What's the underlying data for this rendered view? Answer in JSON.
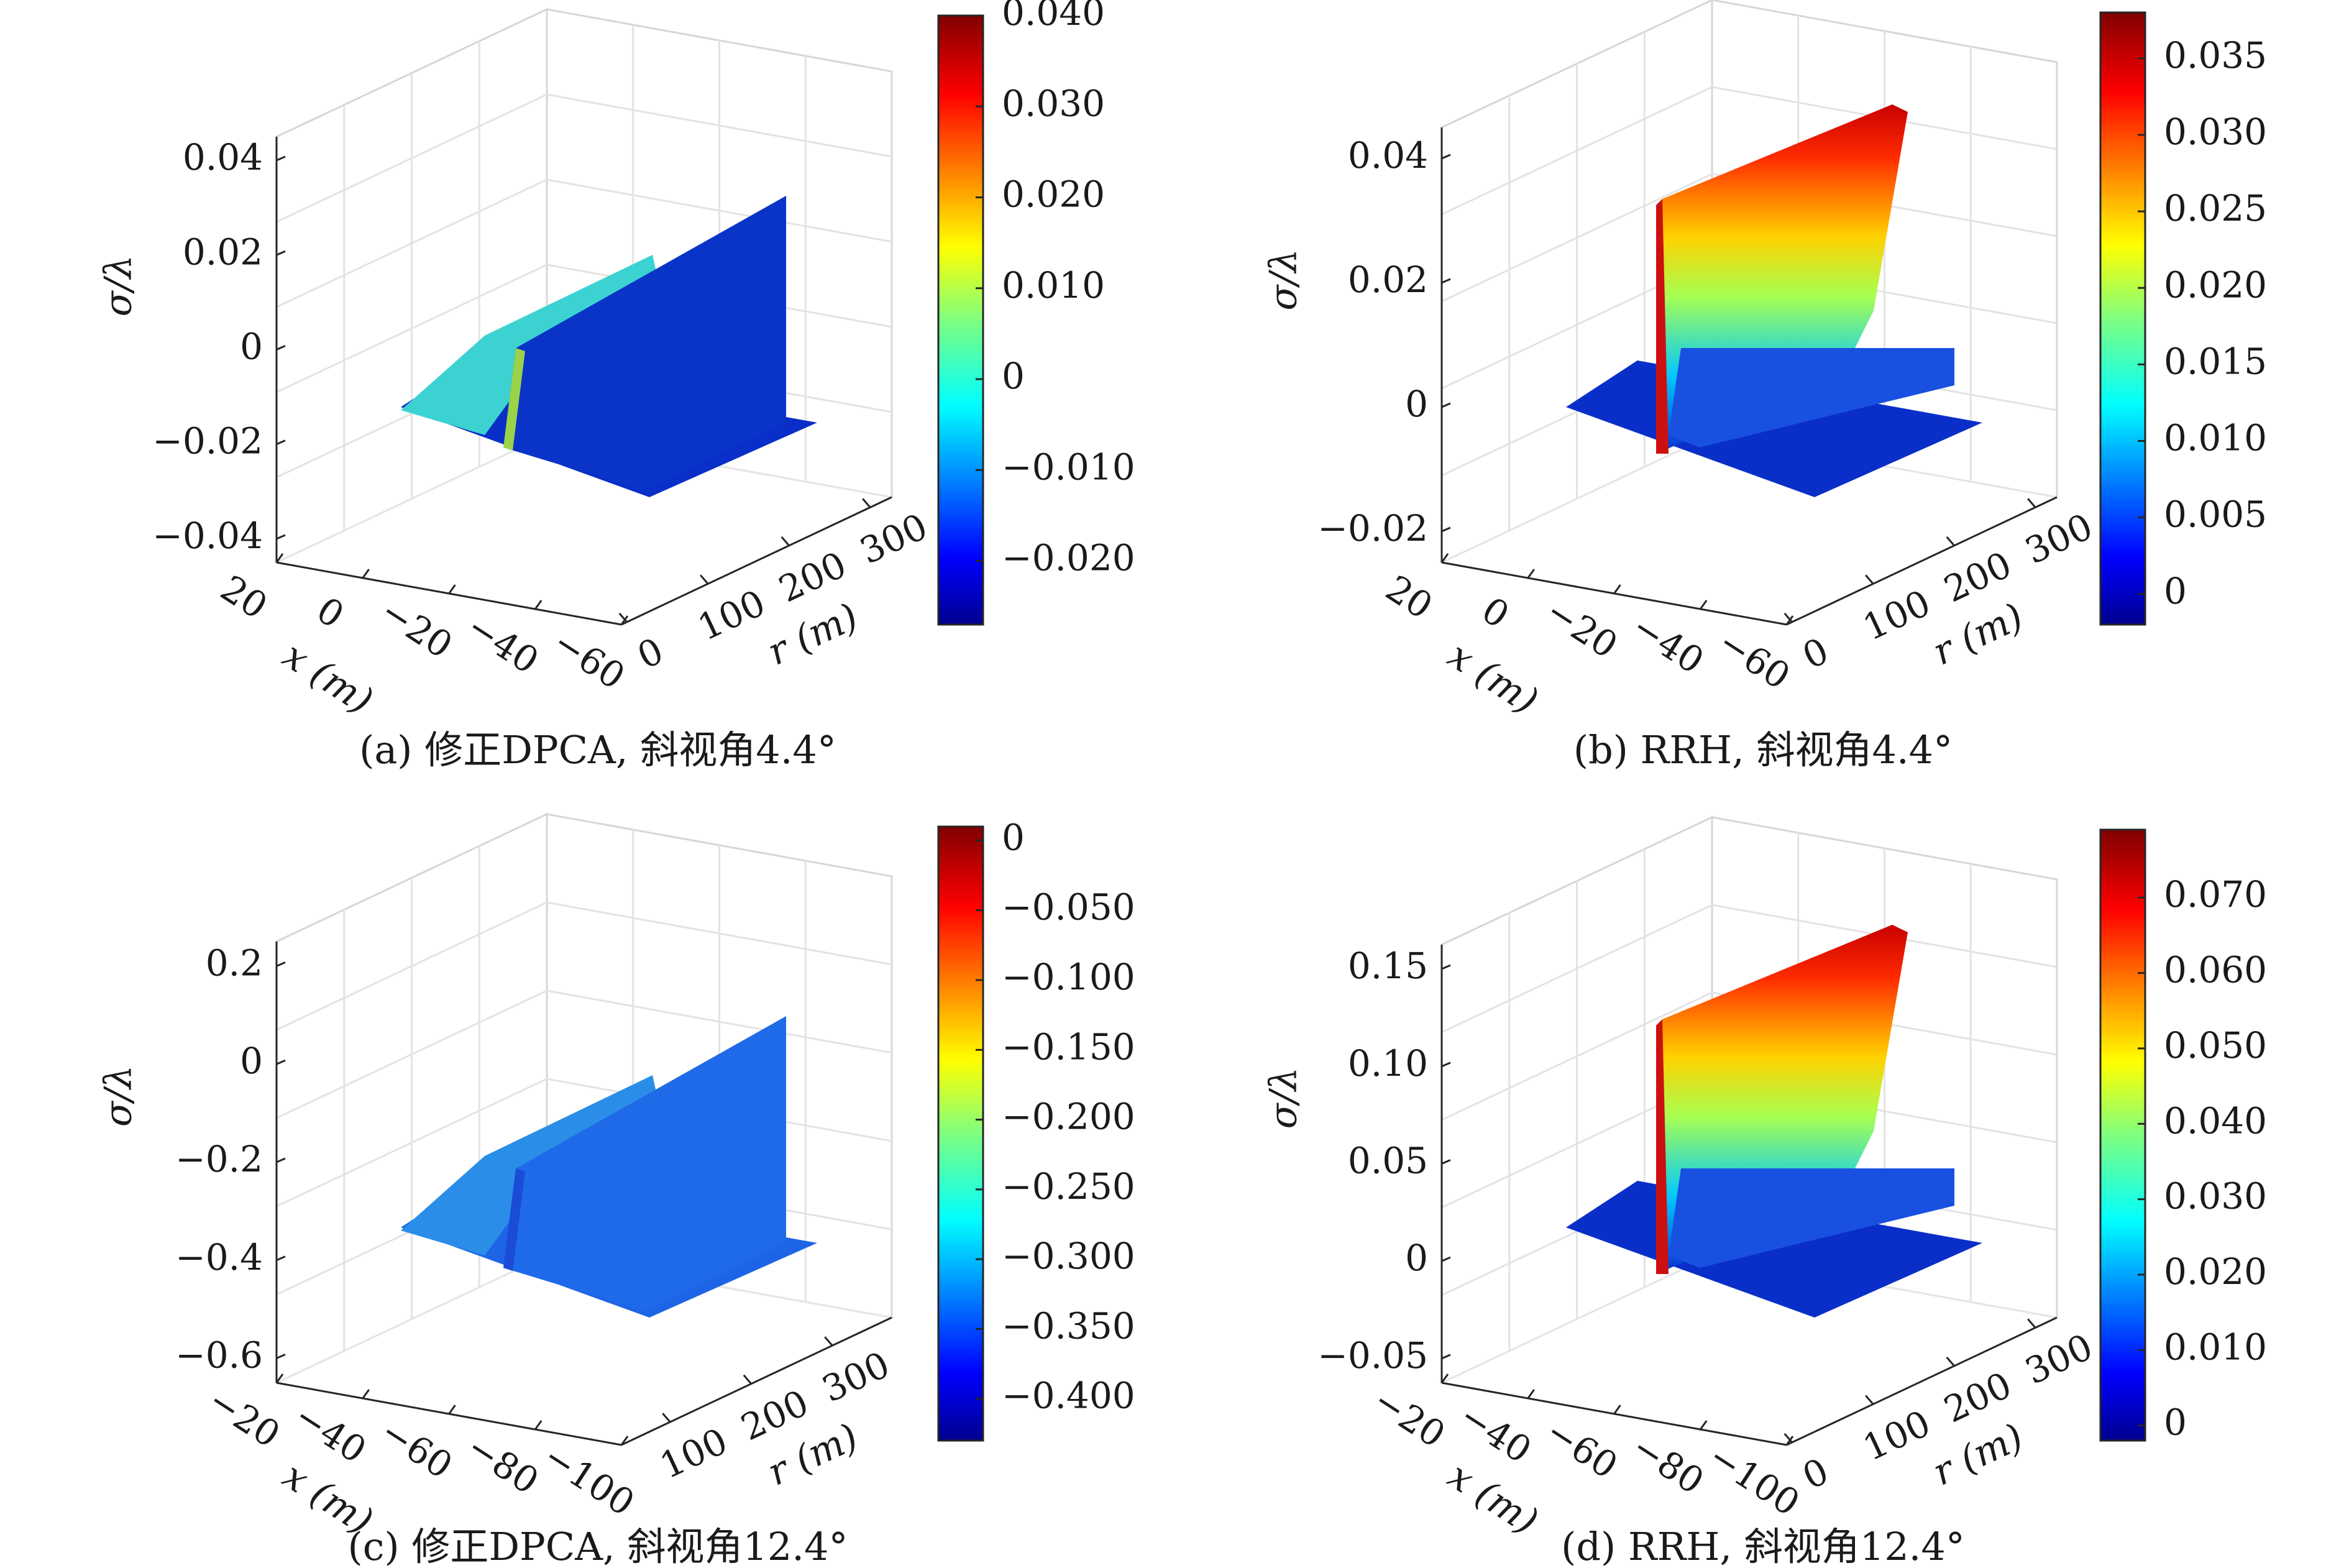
{
  "figure": {
    "panels": [
      {
        "id": "a",
        "caption": "(a) 修正DPCA, 斜视角4.4°"
      },
      {
        "id": "b",
        "caption": "(b) RRH, 斜视角4.4°"
      },
      {
        "id": "c",
        "caption": "(c) 修正DPCA, 斜视角12.4°"
      },
      {
        "id": "d",
        "caption": "(d) RRH, 斜视角12.4°"
      }
    ]
  },
  "chart_data": [
    {
      "id": "a",
      "type": "surface",
      "title": "",
      "xlabel": "r (m)",
      "ylabel": "x (m)",
      "zlabel": "σ/λ",
      "r_ticks": [
        "0",
        "100",
        "200",
        "300"
      ],
      "x_ticks": [
        "20",
        "0",
        "−20",
        "−40",
        "−60"
      ],
      "z_ticks": [
        "0.04",
        "0.02",
        "0",
        "−0.02",
        "−0.04"
      ],
      "zlim": [
        -0.05,
        0.05
      ],
      "colorbar": {
        "colormap": "jet",
        "range": [
          -0.027,
          0.04
        ],
        "ticks": [
          "0.040",
          "0.030",
          "0.020",
          "0.010",
          "0",
          "−0.010",
          "−0.020"
        ]
      },
      "surface": {
        "ridge_r": 70,
        "base_value": -0.027,
        "ridge_peak_near": 0.014,
        "ridge_peak_far": 0.03,
        "left_peak": 0.012
      },
      "colors": {
        "fill": "#0a2fc8",
        "left": "#3cd2d2"
      }
    },
    {
      "id": "b",
      "type": "surface",
      "title": "",
      "xlabel": "r (m)",
      "ylabel": "x (m)",
      "zlabel": "σ/λ",
      "r_ticks": [
        "0",
        "100",
        "200",
        "300"
      ],
      "x_ticks": [
        "20",
        "0",
        "−20",
        "−40",
        "−60"
      ],
      "z_ticks": [
        "0.04",
        "0.02",
        "0",
        "−0.02"
      ],
      "zlim": [
        -0.02,
        0.045
      ],
      "colorbar": {
        "colormap": "jet",
        "range": [
          -0.002,
          0.038
        ],
        "ticks": [
          "0.035",
          "0.030",
          "0.025",
          "0.020",
          "0.015",
          "0.010",
          "0.005",
          "0"
        ]
      },
      "surface": {
        "ridge_r": 70,
        "base_value": 0.0,
        "peak_near": 0.031,
        "peak_far": 0.042,
        "low_wall": 0.002
      },
      "colors": {
        "fill": "#0a2fc8",
        "peak": "#cc1010"
      }
    },
    {
      "id": "c",
      "type": "surface",
      "title": "",
      "xlabel": "r (m)",
      "ylabel": "x (m)",
      "zlabel": "σ/λ",
      "r_ticks": [
        "100",
        "200",
        "300"
      ],
      "x_ticks": [
        "−20",
        "−40",
        "−60",
        "−80",
        "−100"
      ],
      "z_ticks": [
        "0.2",
        "0",
        "−0.2",
        "−0.4",
        "−0.6"
      ],
      "zlim": [
        -0.6,
        0.2
      ],
      "colorbar": {
        "colormap": "jet",
        "range": [
          -0.43,
          0.01
        ],
        "ticks": [
          "0",
          "−0.050",
          "−0.100",
          "−0.150",
          "−0.200",
          "−0.250",
          "−0.300",
          "−0.350",
          "−0.400"
        ]
      },
      "surface": {
        "ridge_r": 60,
        "base_value": -0.42,
        "left_peak": -0.2,
        "ridge_peak_far": 0.01
      },
      "colors": {
        "fill": "#1e64e6",
        "left": "#2a8ee8"
      }
    },
    {
      "id": "d",
      "type": "surface",
      "title": "",
      "xlabel": "r (m)",
      "ylabel": "x (m)",
      "zlabel": "σ/λ",
      "r_ticks": [
        "0",
        "100",
        "200",
        "300"
      ],
      "x_ticks": [
        "−20",
        "−40",
        "−60",
        "−80",
        "−100"
      ],
      "z_ticks": [
        "0.15",
        "0.10",
        "0.05",
        "0",
        "−0.05"
      ],
      "zlim": [
        -0.05,
        0.15
      ],
      "colorbar": {
        "colormap": "jet",
        "range": [
          -0.002,
          0.079
        ],
        "ticks": [
          "0.070",
          "0.060",
          "0.050",
          "0.040",
          "0.030",
          "0.020",
          "0.010",
          "0"
        ]
      },
      "surface": {
        "ridge_r": 60,
        "base_value": 0.0,
        "peak_near": 0.066,
        "peak_far": 0.079,
        "low_wall": 0.008
      },
      "colors": {
        "fill": "#0a2fc8",
        "peak": "#cc1010"
      }
    }
  ]
}
